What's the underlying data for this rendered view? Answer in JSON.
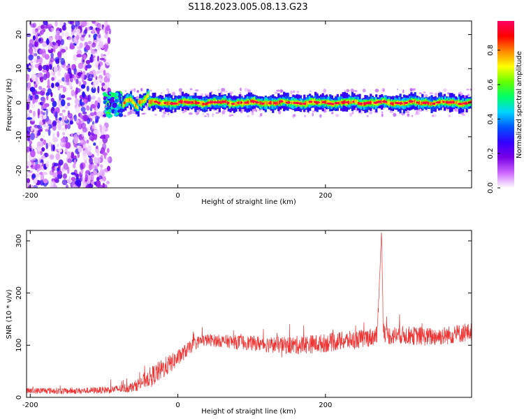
{
  "figure": {
    "title": "S118.2023.005.08.13.G23"
  },
  "chart_data": [
    {
      "type": "heatmap",
      "title": "",
      "xlabel": "Height of straight line (km)",
      "ylabel": "Frequency (Hz)",
      "xlim": [
        -205,
        398
      ],
      "ylim": [
        -25,
        24
      ],
      "xticks": [
        "-200",
        "0",
        "200"
      ],
      "xtick_values": [
        -200,
        0,
        200
      ],
      "yticks": [
        "-20",
        "-10",
        "0",
        "10",
        "20"
      ],
      "ytick_values": [
        -20,
        -10,
        0,
        10,
        20
      ],
      "colorbar": {
        "label": "Normalized spectral amplitude",
        "ticks": [
          "0.0",
          "0.2",
          "0.4",
          "0.6",
          "0.8"
        ],
        "tick_values": [
          0.0,
          0.2,
          0.4,
          0.6,
          0.8
        ],
        "range": [
          0,
          0.97
        ],
        "colors": [
          "#ffffff",
          "#cc66ff",
          "#7a00e6",
          "#3300ff",
          "#0055ff",
          "#00d5ff",
          "#00ff66",
          "#66ff00",
          "#ffff00",
          "#ff8800",
          "#ff0000",
          "#ff0066"
        ]
      },
      "regions": [
        {
          "name": "noise",
          "x_range": [
            -205,
            -100
          ],
          "f_range": [
            -25,
            24
          ],
          "amplitude": [
            0.02,
            0.3
          ]
        },
        {
          "name": "onset",
          "x_range": [
            -100,
            -75
          ],
          "f_range": [
            -4,
            3
          ],
          "amplitude": [
            0.2,
            0.6
          ]
        },
        {
          "name": "carrier",
          "x_range": [
            -75,
            398
          ],
          "f_center": 0.0,
          "f_width": 3,
          "amplitude": [
            0.6,
            0.97
          ]
        }
      ]
    },
    {
      "type": "line",
      "title": "",
      "xlabel": "Height of straight line (km)",
      "ylabel": "SNR (10 * v/v)",
      "xlim": [
        -205,
        398
      ],
      "ylim": [
        0,
        320
      ],
      "xticks": [
        "-200",
        "0",
        "200"
      ],
      "xtick_values": [
        -200,
        0,
        200
      ],
      "yticks": [
        "0",
        "100",
        "200",
        "300"
      ],
      "ytick_values": [
        0,
        100,
        200,
        300
      ],
      "color": "#ee3333",
      "series": [
        {
          "x": [
            -205,
            -180,
            -150,
            -120,
            -100,
            -80,
            -60,
            -50,
            -40,
            -30,
            -20,
            -10,
            0,
            10,
            20,
            30,
            40,
            60,
            80,
            100,
            120,
            140,
            160,
            180,
            200,
            220,
            240,
            260,
            270,
            276,
            278,
            280,
            282,
            290,
            300,
            320,
            340,
            360,
            380,
            398
          ],
          "y": [
            12,
            13,
            12,
            13,
            14,
            16,
            20,
            28,
            38,
            45,
            55,
            65,
            75,
            88,
            100,
            108,
            110,
            108,
            106,
            104,
            102,
            100,
            100,
            102,
            104,
            108,
            110,
            115,
            118,
            320,
            150,
            125,
            120,
            118,
            120,
            118,
            116,
            118,
            122,
            125
          ],
          "noise": [
            6,
            6,
            6,
            6,
            7,
            8,
            10,
            14,
            18,
            20,
            20,
            18,
            16,
            14,
            12,
            12,
            12,
            12,
            14,
            14,
            16,
            16,
            18,
            18,
            18,
            18,
            18,
            18,
            18,
            0,
            20,
            18,
            18,
            18,
            18,
            18,
            18,
            18,
            18,
            18
          ]
        }
      ]
    }
  ]
}
